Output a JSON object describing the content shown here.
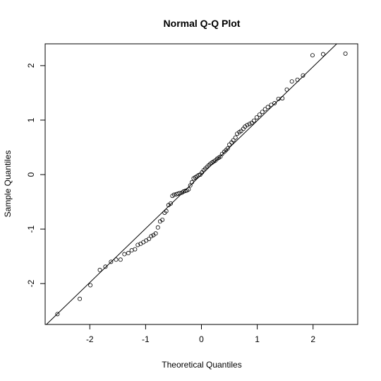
{
  "chart_data": {
    "type": "scatter",
    "title": "Normal Q-Q Plot",
    "xlabel": "Theoretical Quantiles",
    "ylabel": "Sample Quantiles",
    "xlim": [
      -2.8,
      2.8
    ],
    "ylim": [
      -2.75,
      2.4
    ],
    "x_ticks": [
      -2,
      -1,
      0,
      1,
      2
    ],
    "x_tick_labels": [
      "-2",
      "-1",
      "0",
      "1",
      "2"
    ],
    "y_ticks": [
      -2,
      -1,
      0,
      1,
      2
    ],
    "y_tick_labels": [
      "-2",
      "-1",
      "0",
      "1",
      "2"
    ],
    "grid": false,
    "reference_line": {
      "slope": 0.99,
      "intercept": 0.0
    },
    "points": [
      {
        "x": -2.58,
        "y": -2.56
      },
      {
        "x": -2.18,
        "y": -2.28
      },
      {
        "x": -1.99,
        "y": -2.03
      },
      {
        "x": -1.82,
        "y": -1.75
      },
      {
        "x": -1.72,
        "y": -1.69
      },
      {
        "x": -1.62,
        "y": -1.6
      },
      {
        "x": -1.53,
        "y": -1.56
      },
      {
        "x": -1.45,
        "y": -1.56
      },
      {
        "x": -1.38,
        "y": -1.46
      },
      {
        "x": -1.31,
        "y": -1.44
      },
      {
        "x": -1.25,
        "y": -1.39
      },
      {
        "x": -1.19,
        "y": -1.37
      },
      {
        "x": -1.14,
        "y": -1.29
      },
      {
        "x": -1.09,
        "y": -1.27
      },
      {
        "x": -1.04,
        "y": -1.24
      },
      {
        "x": -0.99,
        "y": -1.21
      },
      {
        "x": -0.94,
        "y": -1.18
      },
      {
        "x": -0.9,
        "y": -1.13
      },
      {
        "x": -0.86,
        "y": -1.11
      },
      {
        "x": -0.82,
        "y": -1.08
      },
      {
        "x": -0.78,
        "y": -0.97
      },
      {
        "x": -0.74,
        "y": -0.86
      },
      {
        "x": -0.7,
        "y": -0.83
      },
      {
        "x": -0.66,
        "y": -0.7
      },
      {
        "x": -0.63,
        "y": -0.67
      },
      {
        "x": -0.59,
        "y": -0.56
      },
      {
        "x": -0.55,
        "y": -0.53
      },
      {
        "x": -0.52,
        "y": -0.39
      },
      {
        "x": -0.49,
        "y": -0.37
      },
      {
        "x": -0.45,
        "y": -0.36
      },
      {
        "x": -0.42,
        "y": -0.35
      },
      {
        "x": -0.39,
        "y": -0.34
      },
      {
        "x": -0.35,
        "y": -0.33
      },
      {
        "x": -0.32,
        "y": -0.31
      },
      {
        "x": -0.29,
        "y": -0.3
      },
      {
        "x": -0.26,
        "y": -0.29
      },
      {
        "x": -0.23,
        "y": -0.27
      },
      {
        "x": -0.2,
        "y": -0.2
      },
      {
        "x": -0.17,
        "y": -0.14
      },
      {
        "x": -0.14,
        "y": -0.07
      },
      {
        "x": -0.11,
        "y": -0.05
      },
      {
        "x": -0.08,
        "y": -0.03
      },
      {
        "x": -0.05,
        "y": -0.01
      },
      {
        "x": -0.02,
        "y": 0.0
      },
      {
        "x": 0.01,
        "y": 0.04
      },
      {
        "x": 0.04,
        "y": 0.08
      },
      {
        "x": 0.07,
        "y": 0.11
      },
      {
        "x": 0.1,
        "y": 0.14
      },
      {
        "x": 0.13,
        "y": 0.17
      },
      {
        "x": 0.16,
        "y": 0.2
      },
      {
        "x": 0.19,
        "y": 0.22
      },
      {
        "x": 0.22,
        "y": 0.24
      },
      {
        "x": 0.25,
        "y": 0.26
      },
      {
        "x": 0.28,
        "y": 0.29
      },
      {
        "x": 0.31,
        "y": 0.31
      },
      {
        "x": 0.34,
        "y": 0.33
      },
      {
        "x": 0.37,
        "y": 0.38
      },
      {
        "x": 0.41,
        "y": 0.42
      },
      {
        "x": 0.44,
        "y": 0.45
      },
      {
        "x": 0.47,
        "y": 0.48
      },
      {
        "x": 0.5,
        "y": 0.55
      },
      {
        "x": 0.54,
        "y": 0.59
      },
      {
        "x": 0.57,
        "y": 0.63
      },
      {
        "x": 0.61,
        "y": 0.68
      },
      {
        "x": 0.64,
        "y": 0.75
      },
      {
        "x": 0.68,
        "y": 0.78
      },
      {
        "x": 0.71,
        "y": 0.8
      },
      {
        "x": 0.75,
        "y": 0.84
      },
      {
        "x": 0.78,
        "y": 0.88
      },
      {
        "x": 0.82,
        "y": 0.91
      },
      {
        "x": 0.86,
        "y": 0.93
      },
      {
        "x": 0.9,
        "y": 0.95
      },
      {
        "x": 0.94,
        "y": 0.99
      },
      {
        "x": 0.99,
        "y": 1.05
      },
      {
        "x": 1.04,
        "y": 1.1
      },
      {
        "x": 1.09,
        "y": 1.15
      },
      {
        "x": 1.14,
        "y": 1.2
      },
      {
        "x": 1.19,
        "y": 1.24
      },
      {
        "x": 1.25,
        "y": 1.28
      },
      {
        "x": 1.31,
        "y": 1.31
      },
      {
        "x": 1.38,
        "y": 1.39
      },
      {
        "x": 1.45,
        "y": 1.4
      },
      {
        "x": 1.53,
        "y": 1.56
      },
      {
        "x": 1.62,
        "y": 1.71
      },
      {
        "x": 1.72,
        "y": 1.74
      },
      {
        "x": 1.82,
        "y": 1.82
      },
      {
        "x": 1.99,
        "y": 2.19
      },
      {
        "x": 2.18,
        "y": 2.21
      },
      {
        "x": 2.58,
        "y": 2.22
      }
    ]
  }
}
